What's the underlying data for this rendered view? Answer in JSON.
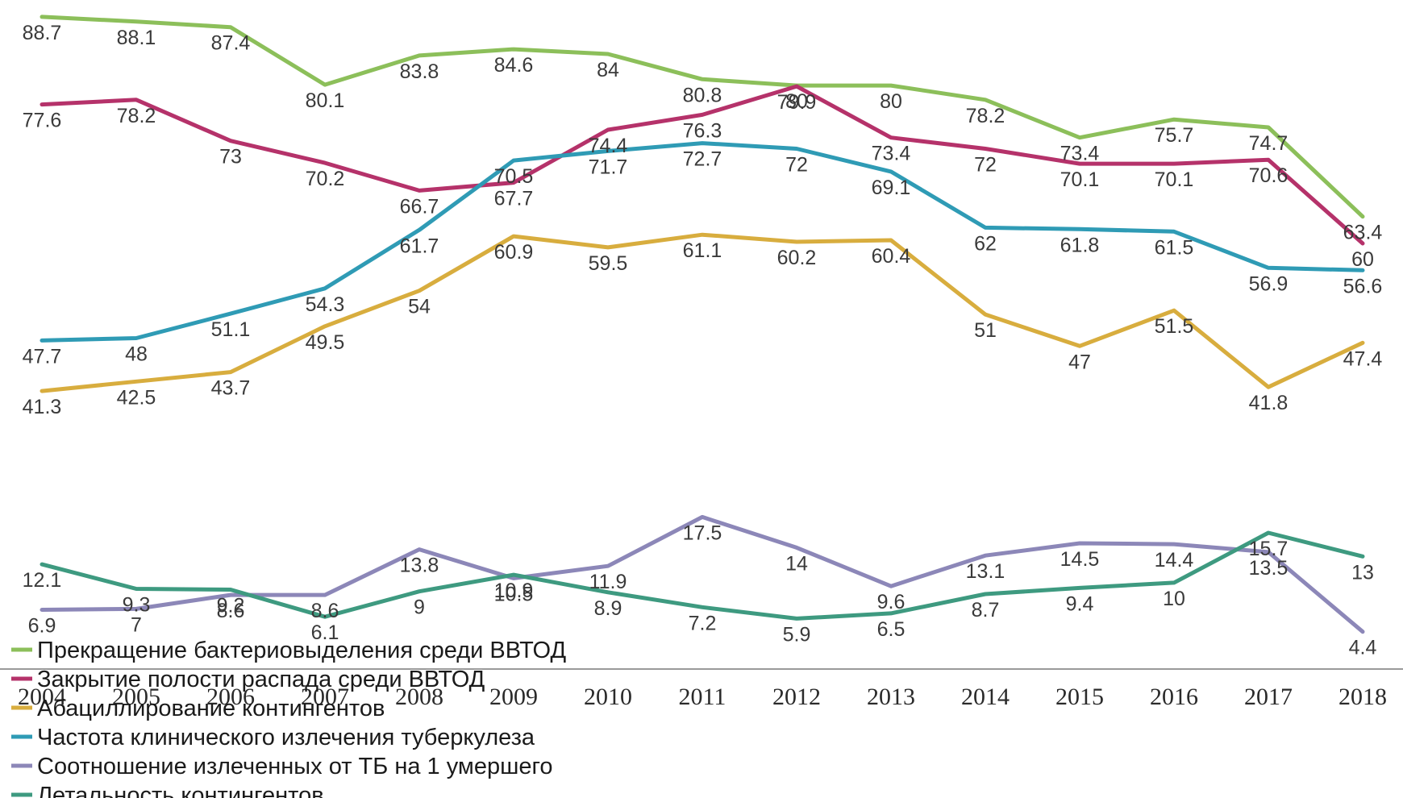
{
  "chart_data": {
    "type": "line",
    "categories": [
      "2004",
      "2005",
      "2006",
      "2007",
      "2008",
      "2009",
      "2010",
      "2011",
      "2012",
      "2013",
      "2014",
      "2015",
      "2016",
      "2017",
      "2018"
    ],
    "series": [
      {
        "name": "Прекращение бактериовыделения среди ВВТОД",
        "color": "#8cbf5a",
        "values": [
          88.7,
          88.1,
          87.4,
          80.1,
          83.8,
          84.6,
          84,
          80.8,
          80,
          80,
          78.2,
          73.4,
          75.7,
          74.7,
          63.4
        ]
      },
      {
        "name": "Закрытие полости распада среди ВВТОД",
        "color": "#b5326a",
        "values": [
          77.6,
          78.2,
          73,
          70.2,
          66.7,
          67.7,
          74.4,
          76.3,
          79.9,
          73.4,
          72,
          70.1,
          70.1,
          70.6,
          60
        ]
      },
      {
        "name": "Абациллирование контингентов",
        "color": "#d8ad3e",
        "values": [
          41.3,
          42.5,
          43.7,
          49.5,
          54,
          60.9,
          59.5,
          61.1,
          60.2,
          60.4,
          51,
          47,
          51.5,
          41.8,
          47.4
        ]
      },
      {
        "name": "Частота клинического излечения туберкулеза",
        "color": "#2f9bb5",
        "values": [
          47.7,
          48,
          51.1,
          54.3,
          61.7,
          70.5,
          71.7,
          72.7,
          72,
          69.1,
          62,
          61.8,
          61.5,
          56.9,
          56.6
        ]
      },
      {
        "name": "Соотношение излеченных от ТБ на 1 умершего",
        "color": "#8c87b8",
        "values": [
          6.9,
          7,
          8.6,
          8.6,
          13.8,
          10.5,
          11.9,
          17.5,
          14,
          9.6,
          13.1,
          14.5,
          14.4,
          13.5,
          4.4
        ]
      },
      {
        "name": "Летальность контингентов",
        "color": "#3e9a80",
        "values": [
          12.1,
          9.3,
          9.2,
          6.1,
          9,
          10.9,
          8.9,
          7.2,
          5.9,
          6.5,
          8.7,
          9.4,
          10,
          15.7,
          13
        ]
      }
    ],
    "x_axis_color": "#9a9a9a",
    "grid": false,
    "legend_position": "bottom-left"
  }
}
